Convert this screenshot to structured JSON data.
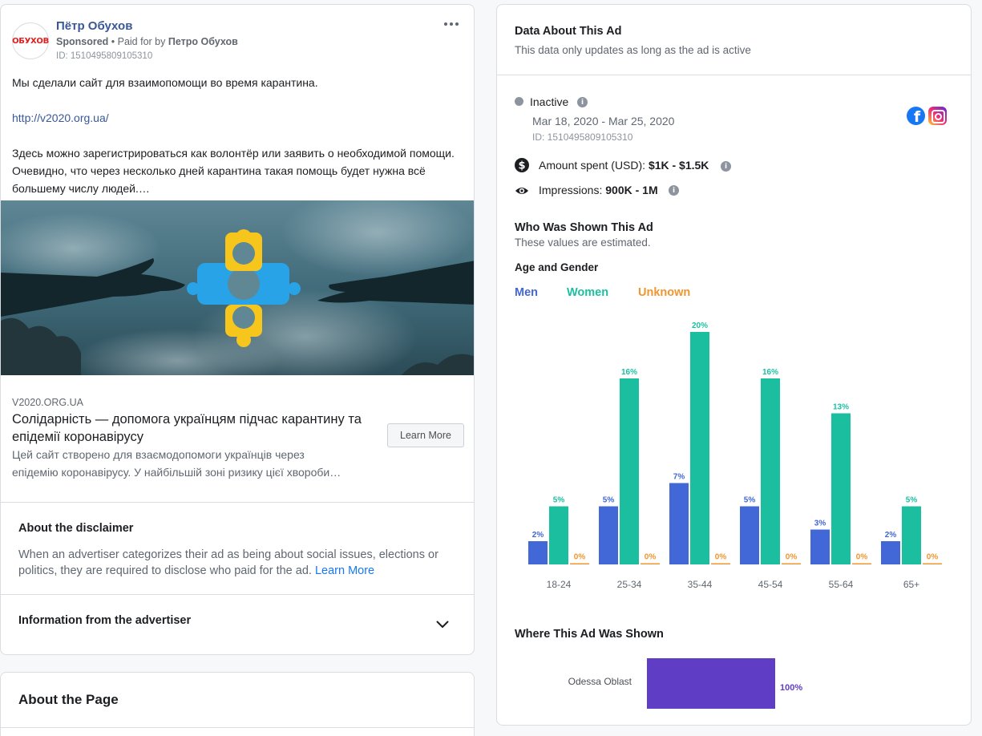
{
  "ad": {
    "logo_text": "ОБУХОВ",
    "advertiser_name": "Пётр Обухов",
    "sponsored_label": "Sponsored",
    "paid_for_prefix": " • Paid for by ",
    "paid_by": "Петро Обухов",
    "id": "ID: 1510495809105310",
    "text_line1": "Мы сделали сайт для взаимопомощи во время карантина.",
    "link": "http://v2020.org.ua/",
    "text_line2": "Здесь можно зарегистрироваться как волонтёр или заявить о необходимой помощи. Очевидно, что через несколько дней карантина такая помощь будет нужна всё большему числу людей.…",
    "link_domain": "V2020.ORG.UA",
    "link_title": "Солідарність — допомога українцям підчас карантину та епідемії коронавірусу",
    "link_desc_line1": "Цей сайт створено для взаємодопомоги українців через",
    "link_desc_line2": "епідемію коронавірусу. У найбільшій зоні ризику цієї хвороби…",
    "learn_more_label": "Learn More"
  },
  "disclaimer": {
    "title": "About the disclaimer",
    "text": "When an advertiser categorizes their ad as being about social issues, elections or politics, they are required to disclose who paid for the ad. ",
    "link": "Learn More"
  },
  "advertiser_info": {
    "title": "Information from the advertiser"
  },
  "page_section": {
    "title": "About the Page"
  },
  "data_panel": {
    "title": "Data About This Ad",
    "subtitle": "This data only updates as long as the ad is active",
    "status": "Inactive",
    "date_range": "Mar 18, 2020 - Mar 25, 2020",
    "id": "ID: 1510495809105310",
    "amount_label": "Amount spent (USD): ",
    "amount_value": "$1K - $1.5K",
    "impressions_label": "Impressions: ",
    "impressions_value": "900K - 1M",
    "shown_title": "Who Was Shown This Ad",
    "shown_subtitle": "These values are estimated.",
    "age_gender_title": "Age and Gender",
    "where_title": "Where This Ad Was Shown"
  },
  "colors": {
    "men": "#4267d6",
    "women": "#1bbfa0",
    "unknown": "#f0952f",
    "region": "#5f3dc4",
    "link": "#385898"
  },
  "icons": {
    "more": "more-horizontal-icon",
    "chevron": "chevron-down-icon",
    "info": "info-icon",
    "dollar": "dollar-circle-icon",
    "eye": "eye-icon",
    "facebook": "facebook-icon",
    "instagram": "instagram-icon"
  },
  "chart_data": [
    {
      "type": "bar",
      "title": "Age and Gender",
      "categories": [
        "18-24",
        "25-34",
        "35-44",
        "45-54",
        "55-64",
        "65+"
      ],
      "series": [
        {
          "name": "Men",
          "values": [
            2,
            5,
            7,
            5,
            3,
            2
          ]
        },
        {
          "name": "Women",
          "values": [
            5,
            16,
            20,
            16,
            13,
            5
          ]
        },
        {
          "name": "Unknown",
          "values": [
            0,
            0,
            0,
            0,
            0,
            0
          ]
        }
      ],
      "value_suffix": "%",
      "ylim": [
        0,
        20
      ],
      "grid": false,
      "legend": "top-left"
    },
    {
      "type": "bar",
      "orientation": "horizontal",
      "title": "Where This Ad Was Shown",
      "categories": [
        "Odessa Oblast"
      ],
      "values": [
        100
      ],
      "value_suffix": "%",
      "xlim": [
        0,
        100
      ]
    }
  ]
}
